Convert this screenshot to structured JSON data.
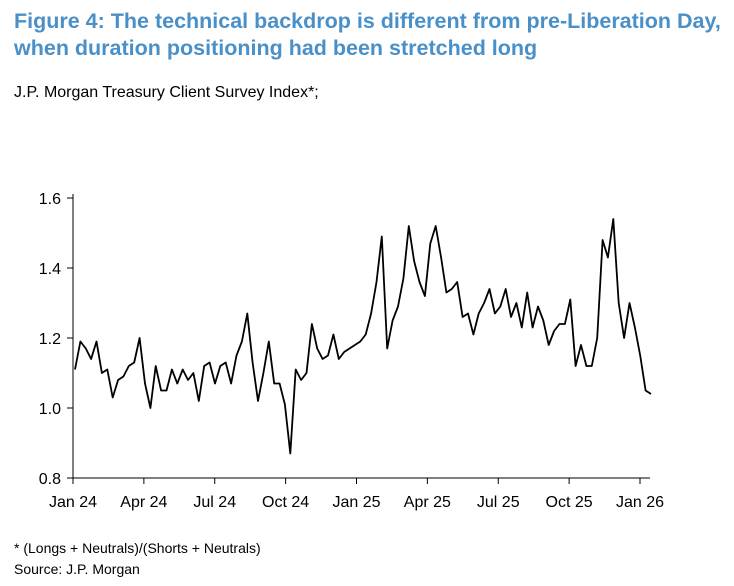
{
  "title_line1": "Figure 4: The technical backdrop is different from pre-Liberation Day,",
  "title_line2": "when duration positioning had been stretched long",
  "subtitle": "J.P. Morgan Treasury Client Survey Index*;",
  "footnote": "* (Longs + Neutrals)/(Shorts + Neutrals)",
  "source": "Source: J.P. Morgan",
  "colors": {
    "title": "#4a90c8",
    "line": "#000000",
    "axis": "#000000"
  },
  "chart_data": {
    "type": "line",
    "title": "J.P. Morgan Treasury Client Survey Index*;",
    "xlabel": "",
    "ylabel": "",
    "ylim": [
      0.8,
      1.6
    ],
    "yticks": [
      "0.8",
      "1.0",
      "1.2",
      "1.4",
      "1.6"
    ],
    "xticks": [
      "Jan 24",
      "Apr 24",
      "Jul 24",
      "Oct 24",
      "Jan 25",
      "Apr 25",
      "Jul 25",
      "Oct 25",
      "Jan 26"
    ],
    "grid": false,
    "legend": "none",
    "series": [
      {
        "values": [
          1.11,
          1.19,
          1.17,
          1.14,
          1.19,
          1.1,
          1.11,
          1.03,
          1.08,
          1.09,
          1.12,
          1.13,
          1.2,
          1.07,
          1.0,
          1.12,
          1.05,
          1.05,
          1.11,
          1.07,
          1.11,
          1.08,
          1.1,
          1.02,
          1.12,
          1.13,
          1.07,
          1.12,
          1.13,
          1.07,
          1.15,
          1.19,
          1.27,
          1.13,
          1.02,
          1.1,
          1.19,
          1.07,
          1.07,
          1.01,
          0.87,
          1.11,
          1.08,
          1.1,
          1.24,
          1.17,
          1.14,
          1.15,
          1.21,
          1.14,
          1.16,
          1.17,
          1.18,
          1.19,
          1.21,
          1.27,
          1.36,
          1.49,
          1.17,
          1.25,
          1.29,
          1.37,
          1.52,
          1.42,
          1.36,
          1.32,
          1.47,
          1.52,
          1.43,
          1.33,
          1.34,
          1.36,
          1.26,
          1.27,
          1.21,
          1.27,
          1.3,
          1.34,
          1.27,
          1.29,
          1.34,
          1.26,
          1.3,
          1.23,
          1.33,
          1.23,
          1.29,
          1.25,
          1.18,
          1.22,
          1.24,
          1.24,
          1.31,
          1.12,
          1.18,
          1.12,
          1.12,
          1.2,
          1.48,
          1.43,
          1.54,
          1.3,
          1.2,
          1.3,
          1.23,
          1.15,
          1.05,
          1.04
        ]
      }
    ]
  }
}
